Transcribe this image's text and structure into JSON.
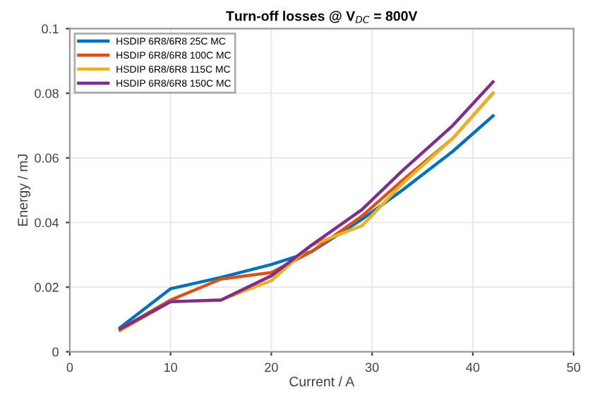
{
  "chart_data": {
    "type": "line",
    "title": "Turn-off losses @ V$_{DC}$ = 800V",
    "xlabel": "Current / A",
    "ylabel": "Energy / mJ",
    "xlim": [
      0,
      50
    ],
    "xticks": [
      0,
      10,
      20,
      30,
      40,
      50
    ],
    "ylim": [
      0,
      0.1
    ],
    "yticks": [
      0,
      0.02,
      0.04,
      0.06,
      0.08,
      0.1
    ],
    "grid": true,
    "legend": "top left",
    "x": [
      5,
      10,
      15,
      20,
      24,
      29,
      33,
      38,
      42
    ],
    "series": [
      {
        "name": "HSDIP 6R8/6R8 25C MC",
        "color": "#0072bd",
        "values": [
          0.0075,
          0.0195,
          0.023,
          0.027,
          0.031,
          0.041,
          0.05,
          0.062,
          0.073
        ]
      },
      {
        "name": "HSDIP 6R8/6R8 100C MC",
        "color": "#d95319",
        "values": [
          0.007,
          0.016,
          0.0225,
          0.0245,
          0.031,
          0.042,
          0.053,
          0.066,
          0.08
        ]
      },
      {
        "name": "HSDIP 6R8/6R8 115C MC",
        "color": "#edb120",
        "values": [
          0.0065,
          0.0155,
          0.016,
          0.022,
          0.033,
          0.039,
          0.052,
          0.066,
          0.08
        ]
      },
      {
        "name": "HSDIP 6R8/6R8 150C MC",
        "color": "#7e2f8e",
        "values": [
          0.007,
          0.0155,
          0.016,
          0.0235,
          0.033,
          0.044,
          0.056,
          0.07,
          0.0835
        ]
      }
    ]
  }
}
